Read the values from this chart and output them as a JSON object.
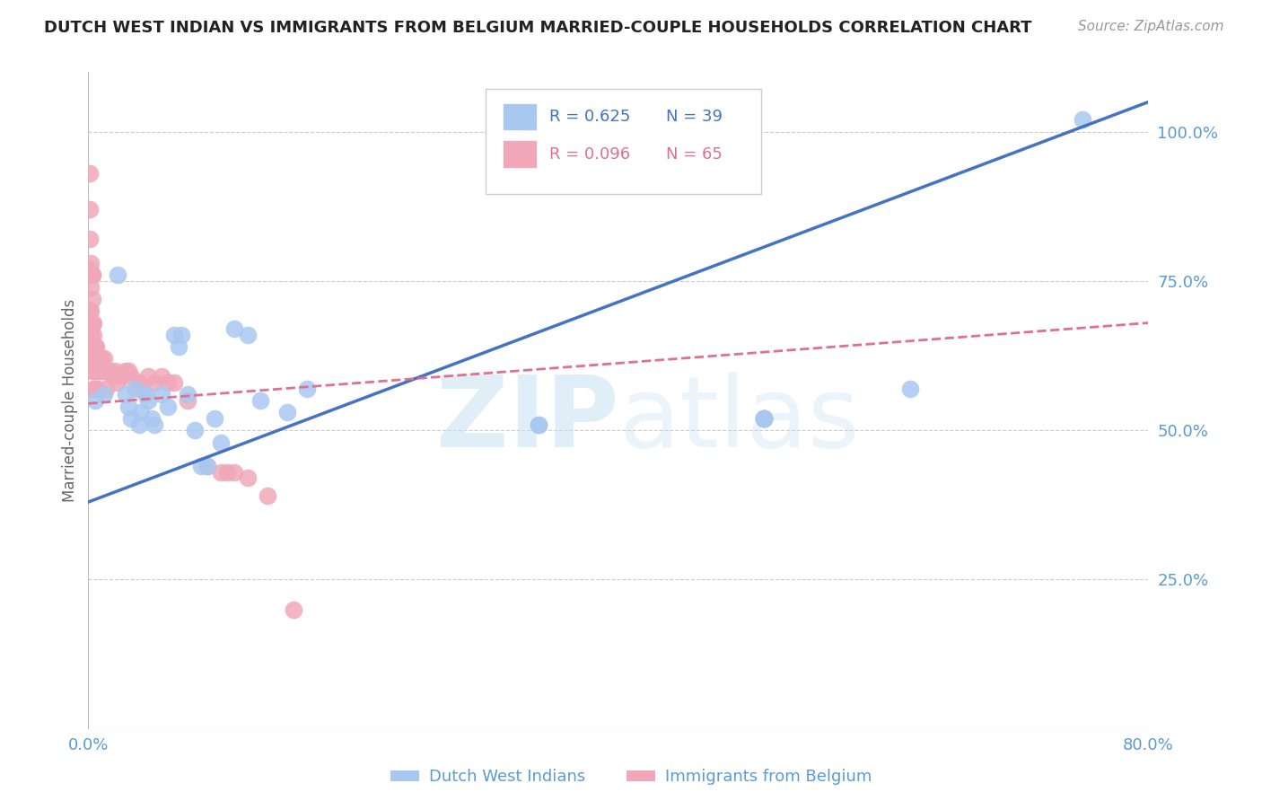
{
  "title": "DUTCH WEST INDIAN VS IMMIGRANTS FROM BELGIUM MARRIED-COUPLE HOUSEHOLDS CORRELATION CHART",
  "source": "Source: ZipAtlas.com",
  "ylabel": "Married-couple Households",
  "y_ticks_right": [
    0.25,
    0.5,
    0.75,
    1.0
  ],
  "y_tick_labels_right": [
    "25.0%",
    "50.0%",
    "75.0%",
    "100.0%"
  ],
  "xlim": [
    0.0,
    0.8
  ],
  "ylim": [
    0.0,
    1.1
  ],
  "legend1_label": "Dutch West Indians",
  "legend2_label": "Immigrants from Belgium",
  "legend_R1": "R = 0.625",
  "legend_N1": "N = 39",
  "legend_R2": "R = 0.096",
  "legend_N2": "N = 65",
  "blue_color": "#A8C8F0",
  "pink_color": "#F0A8B8",
  "blue_line_color": "#4472C4",
  "pink_line_color": "#E07090",
  "background_color": "#FFFFFF",
  "grid_color": "#CCCCCC",
  "right_axis_color": "#5B9BD5",
  "blue_line_x0": 0.0,
  "blue_line_y0": 0.38,
  "blue_line_x1": 0.8,
  "blue_line_y1": 1.05,
  "pink_line_x0": 0.0,
  "pink_line_y0": 0.545,
  "pink_line_x1": 0.8,
  "pink_line_y1": 0.68,
  "blue_dots_x": [
    0.005,
    0.012,
    0.022,
    0.028,
    0.03,
    0.032,
    0.035,
    0.038,
    0.04,
    0.043,
    0.045,
    0.048,
    0.05,
    0.055,
    0.06,
    0.065,
    0.068,
    0.07,
    0.075,
    0.08,
    0.085,
    0.09,
    0.095,
    0.1,
    0.11,
    0.12,
    0.13,
    0.15,
    0.165,
    0.34,
    0.34,
    0.51,
    0.51,
    0.51,
    0.51,
    0.51,
    0.51,
    0.62,
    0.75
  ],
  "blue_dots_y": [
    0.55,
    0.56,
    0.76,
    0.56,
    0.54,
    0.52,
    0.57,
    0.51,
    0.53,
    0.56,
    0.55,
    0.52,
    0.51,
    0.56,
    0.54,
    0.66,
    0.64,
    0.66,
    0.56,
    0.5,
    0.44,
    0.44,
    0.52,
    0.48,
    0.67,
    0.66,
    0.55,
    0.53,
    0.57,
    0.51,
    0.51,
    0.52,
    0.52,
    0.52,
    0.52,
    0.52,
    0.52,
    0.57,
    1.02
  ],
  "pink_dots_x": [
    0.001,
    0.001,
    0.001,
    0.001,
    0.001,
    0.002,
    0.002,
    0.002,
    0.002,
    0.002,
    0.003,
    0.003,
    0.003,
    0.003,
    0.003,
    0.003,
    0.004,
    0.004,
    0.004,
    0.004,
    0.004,
    0.005,
    0.005,
    0.005,
    0.005,
    0.006,
    0.006,
    0.006,
    0.007,
    0.007,
    0.007,
    0.008,
    0.008,
    0.009,
    0.01,
    0.01,
    0.011,
    0.012,
    0.013,
    0.013,
    0.014,
    0.015,
    0.016,
    0.018,
    0.02,
    0.022,
    0.025,
    0.028,
    0.03,
    0.032,
    0.038,
    0.04,
    0.045,
    0.05,
    0.055,
    0.06,
    0.065,
    0.075,
    0.09,
    0.1,
    0.105,
    0.11,
    0.12,
    0.135,
    0.155
  ],
  "pink_dots_y": [
    0.93,
    0.87,
    0.82,
    0.77,
    0.7,
    0.78,
    0.74,
    0.7,
    0.66,
    0.61,
    0.76,
    0.76,
    0.72,
    0.68,
    0.64,
    0.6,
    0.68,
    0.66,
    0.63,
    0.6,
    0.57,
    0.64,
    0.62,
    0.6,
    0.57,
    0.64,
    0.62,
    0.6,
    0.62,
    0.6,
    0.57,
    0.62,
    0.6,
    0.62,
    0.62,
    0.6,
    0.6,
    0.62,
    0.6,
    0.57,
    0.6,
    0.6,
    0.6,
    0.59,
    0.6,
    0.58,
    0.59,
    0.6,
    0.6,
    0.59,
    0.58,
    0.57,
    0.59,
    0.58,
    0.59,
    0.58,
    0.58,
    0.55,
    0.44,
    0.43,
    0.43,
    0.43,
    0.42,
    0.39,
    0.2
  ]
}
